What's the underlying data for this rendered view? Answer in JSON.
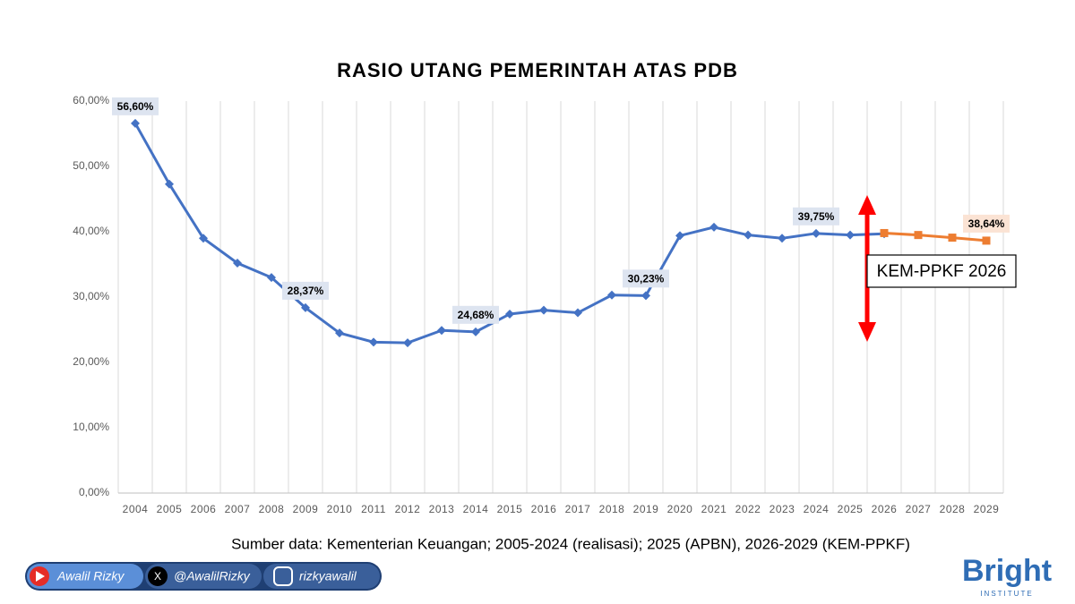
{
  "chart_data": {
    "type": "line",
    "title": "RASIO UTANG PEMERINTAH ATAS PDB",
    "categories": [
      "2004",
      "2005",
      "2006",
      "2007",
      "2008",
      "2009",
      "2010",
      "2011",
      "2012",
      "2013",
      "2014",
      "2015",
      "2016",
      "2017",
      "2018",
      "2019",
      "2020",
      "2021",
      "2022",
      "2023",
      "2024",
      "2025",
      "2026",
      "2027",
      "2028",
      "2029"
    ],
    "series": [
      {
        "color": "#4472c4",
        "marker": "diamond",
        "values": [
          56.6,
          47.3,
          39.0,
          35.2,
          33.0,
          28.37,
          24.5,
          23.1,
          23.0,
          24.9,
          24.68,
          27.4,
          28.0,
          27.6,
          30.3,
          30.23,
          39.4,
          40.7,
          39.5,
          39.0,
          39.75,
          39.5,
          39.7,
          null,
          null,
          null
        ],
        "value_labels": [
          "56,60%",
          null,
          null,
          null,
          null,
          "28,37%",
          null,
          null,
          null,
          null,
          "24,68%",
          null,
          null,
          null,
          null,
          "30,23%",
          null,
          null,
          null,
          null,
          "39,75%",
          null,
          null,
          null,
          null,
          null
        ]
      },
      {
        "color": "#ed7d31",
        "marker": "square",
        "values": [
          null,
          null,
          null,
          null,
          null,
          null,
          null,
          null,
          null,
          null,
          null,
          null,
          null,
          null,
          null,
          null,
          null,
          null,
          null,
          null,
          null,
          null,
          39.8,
          39.5,
          39.1,
          38.64
        ],
        "value_labels": [
          null,
          null,
          null,
          null,
          null,
          null,
          null,
          null,
          null,
          null,
          null,
          null,
          null,
          null,
          null,
          null,
          null,
          null,
          null,
          null,
          null,
          null,
          null,
          null,
          null,
          "38,64%"
        ]
      }
    ],
    "ylim": [
      0,
      60
    ],
    "yticks": [
      {
        "value": 0,
        "label": "0,00%"
      },
      {
        "value": 10,
        "label": "10,00%"
      },
      {
        "value": 20,
        "label": "20,00%"
      },
      {
        "value": 30,
        "label": "30,00%"
      },
      {
        "value": 40,
        "label": "40,00%"
      },
      {
        "value": 50,
        "label": "50,00%"
      },
      {
        "value": 60,
        "label": "60,00%"
      }
    ],
    "annotation": "KEM-PPKF 2026",
    "source": "Sumber data: Kementerian Keuangan; 2005-2024 (realisasi); 2025 (APBN), 2026-2029 (KEM-PPKF)"
  },
  "footer": {
    "youtube": "Awalil Rizky",
    "x": "@AwalilRizky",
    "instagram": "rizkyawalil",
    "logo": "Bright",
    "logo_sub": "INSTITUTE"
  }
}
